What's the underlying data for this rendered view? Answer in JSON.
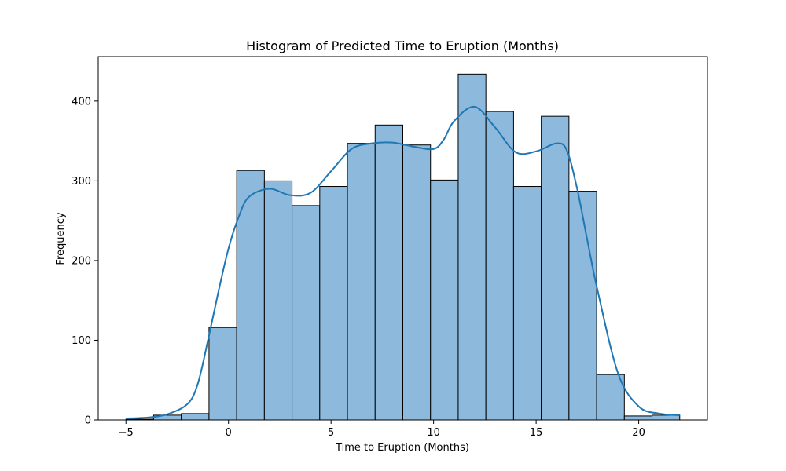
{
  "chart_data": {
    "type": "bar",
    "title": "Histogram of Predicted Time to Eruption (Months)",
    "xlabel": "Time to Eruption (Months)",
    "ylabel": "Frequency",
    "xlim": [
      -6.35,
      23.35
    ],
    "ylim": [
      0,
      456
    ],
    "x_ticks": [
      -5,
      0,
      5,
      10,
      15,
      20
    ],
    "y_ticks": [
      0,
      100,
      200,
      300,
      400
    ],
    "bin_edges": [
      -5,
      -3.65,
      -2.3,
      -0.95,
      0.4,
      1.75,
      3.1,
      4.45,
      5.8,
      7.15,
      8.5,
      9.85,
      11.2,
      12.55,
      13.9,
      15.25,
      16.6,
      17.95,
      19.3,
      20.65,
      22
    ],
    "values": [
      1,
      6,
      8,
      116,
      313,
      300,
      269,
      293,
      347,
      370,
      345,
      301,
      434,
      387,
      293,
      381,
      287,
      57,
      5,
      6
    ],
    "kde": {
      "x": [
        -5,
        -4,
        -3,
        -2,
        -1.5,
        -1,
        -0.5,
        0,
        0.5,
        1,
        2,
        3,
        4,
        5,
        6,
        7,
        8,
        9,
        10,
        10.5,
        11,
        12,
        13,
        14,
        15,
        16,
        16.5,
        17,
        17.5,
        18,
        19,
        20,
        21,
        22
      ],
      "y": [
        2,
        3,
        7,
        20,
        45,
        100,
        160,
        215,
        255,
        280,
        290,
        282,
        285,
        312,
        340,
        347,
        348,
        343,
        340,
        352,
        375,
        393,
        367,
        336,
        337,
        347,
        338,
        290,
        225,
        162,
        58,
        17,
        8,
        6
      ]
    },
    "bar_color": "#8db9dc",
    "bar_edge_color": "#000000",
    "kde_color": "#1f77b4",
    "grid": false,
    "legend": "none"
  }
}
